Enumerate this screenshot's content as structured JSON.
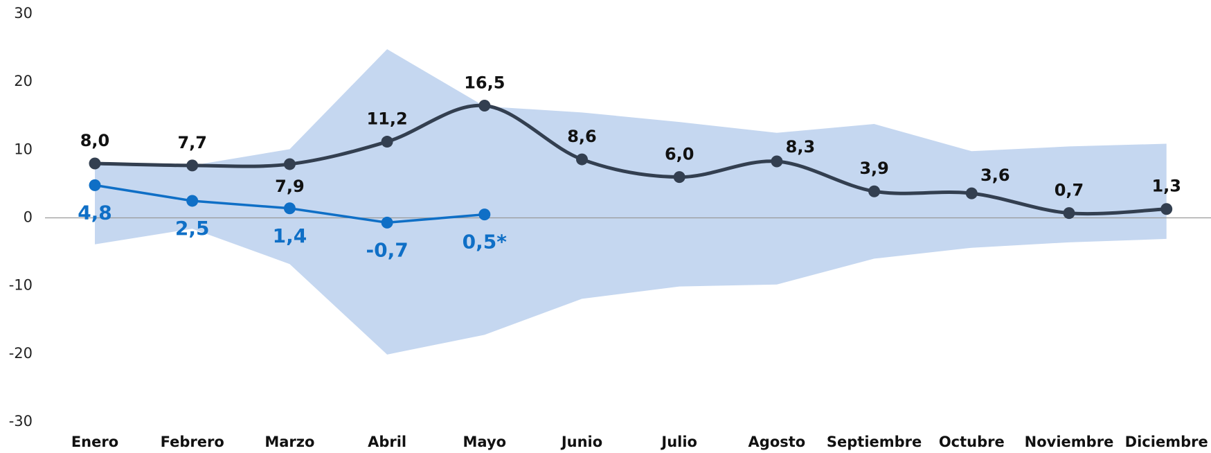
{
  "chart_data": {
    "type": "line",
    "categories": [
      "Enero",
      "Febrero",
      "Marzo",
      "Abril",
      "Mayo",
      "Junio",
      "Julio",
      "Agosto",
      "Septiembre",
      "Octubre",
      "Noviembre",
      "Diciembre"
    ],
    "series": [
      {
        "color": "#333f50",
        "smooth": true,
        "values": [
          8.0,
          7.7,
          7.9,
          11.2,
          16.5,
          8.6,
          6.0,
          8.3,
          3.9,
          3.6,
          0.7,
          1.3
        ],
        "value_labels": [
          "8,0",
          "7,7",
          "7,9",
          "11,2",
          "16,5",
          "8,6",
          "6,0",
          "8,3",
          "3,9",
          "3,6",
          "0,7",
          "1,3"
        ]
      },
      {
        "color": "#0f6fc6",
        "smooth": false,
        "values": [
          4.8,
          2.5,
          1.4,
          -0.7,
          0.5,
          null,
          null,
          null,
          null,
          null,
          null,
          null
        ],
        "value_labels": [
          "4,8",
          "2,5",
          "1,4",
          "-0,7",
          "0,5*",
          null,
          null,
          null,
          null,
          null,
          null,
          null
        ]
      }
    ],
    "band": {
      "color": "#c5d7f0",
      "upper": [
        8.0,
        7.7,
        10.1,
        24.8,
        16.4,
        15.5,
        14.1,
        12.5,
        13.8,
        9.8,
        10.5,
        10.9
      ],
      "lower": [
        -3.9,
        -1.6,
        -6.8,
        -20.1,
        -17.2,
        -11.9,
        -10.1,
        -9.8,
        -6.0,
        -4.4,
        -3.6,
        -3.1
      ]
    },
    "ylim": [
      -30,
      30
    ],
    "yticks": [
      -30,
      -20,
      -10,
      0,
      10,
      20,
      30
    ],
    "grid": false
  }
}
